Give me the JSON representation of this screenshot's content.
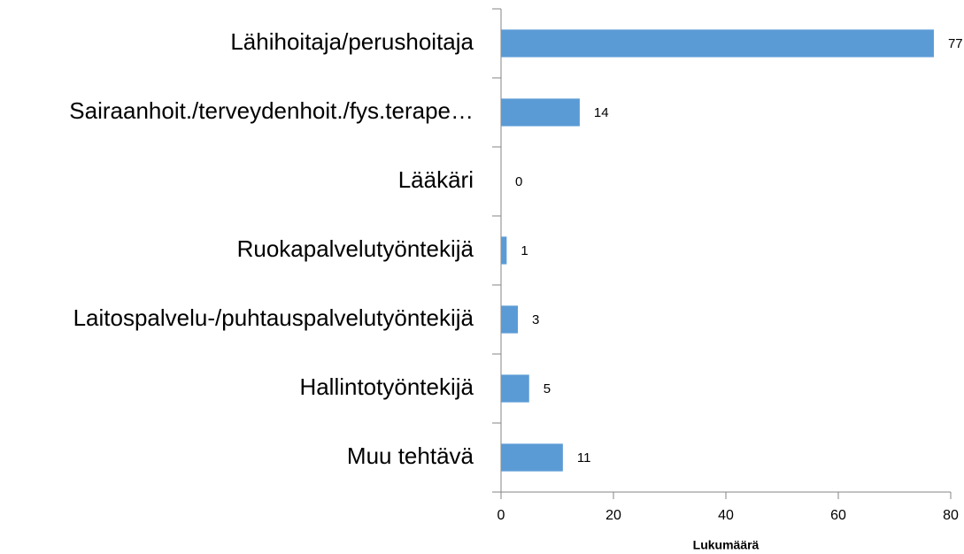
{
  "chart_data": {
    "type": "bar",
    "orientation": "horizontal",
    "categories": [
      "Lähihoitaja/perushoitaja",
      "Sairaanhoit./terveydenhoit./fys.terape…",
      "Lääkäri",
      "Ruokapalvelutyöntekijä",
      "Laitospalvelu-/puhtauspalvelutyöntekijä",
      "Hallintotyöntekijä",
      "Muu tehtävä"
    ],
    "values": [
      77,
      14,
      0,
      1,
      3,
      5,
      11
    ],
    "color": "#5b9bd5",
    "xlim": [
      0,
      80
    ],
    "xticks": [
      0,
      20,
      40,
      60,
      80
    ],
    "xlabel": "Lukumäärä"
  }
}
